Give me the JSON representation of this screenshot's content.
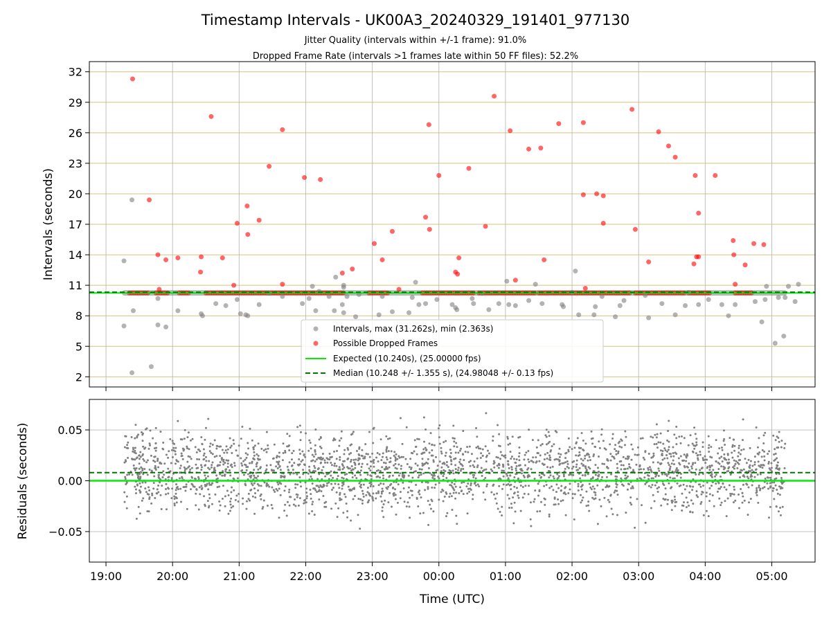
{
  "chart_data": [
    {
      "type": "scatter",
      "title": "Timestamp Intervals - UK00A3_20240329_191401_977130",
      "subtitle_lines": [
        "Jitter Quality (intervals within +/-1 frame): 91.0%",
        "Dropped Frame Rate (intervals >1 frames late within 50 FF files): 52.2%"
      ],
      "xlabel": "",
      "ylabel": "Intervals (seconds)",
      "x_unit": "hours since 19:00 UTC",
      "xlim": [
        -0.25,
        10.65
      ],
      "ylim": [
        1,
        33
      ],
      "yticks": [
        2,
        5,
        8,
        11,
        14,
        17,
        20,
        23,
        26,
        29,
        32
      ],
      "grid": true,
      "legend_position": "lower-center",
      "legend": [
        "Intervals, max (31.262s), min (2.363s)",
        "Possible Dropped Frames",
        "Expected (10.240s), (25.00000 fps)",
        "Median (10.248 +/- 1.355 s), (24.98048 +/- 0.13 fps)"
      ],
      "expected_interval": 10.24,
      "median_interval": 10.248,
      "band_range": [
        0.27,
        10.2
      ],
      "series": [
        {
          "kind": "intervals",
          "color": "#808080",
          "points": [
            [
              0.27,
              13.4
            ],
            [
              0.27,
              7.0
            ],
            [
              0.39,
              19.4
            ],
            [
              0.39,
              2.4
            ],
            [
              0.41,
              8.5
            ],
            [
              0.68,
              3.0
            ],
            [
              0.78,
              7.1
            ],
            [
              0.78,
              9.7
            ],
            [
              0.9,
              6.9
            ],
            [
              1.08,
              8.5
            ],
            [
              1.43,
              8.2
            ],
            [
              1.45,
              8.0
            ],
            [
              1.65,
              9.2
            ],
            [
              1.8,
              9.0
            ],
            [
              1.97,
              9.6
            ],
            [
              2.02,
              8.2
            ],
            [
              2.1,
              8.1
            ],
            [
              2.13,
              8.0
            ],
            [
              2.3,
              9.1
            ],
            [
              2.45,
              10.2
            ],
            [
              2.65,
              9.9
            ],
            [
              2.95,
              9.2
            ],
            [
              3.05,
              9.7
            ],
            [
              3.1,
              10.9
            ],
            [
              3.15,
              8.5
            ],
            [
              3.2,
              10.4
            ],
            [
              3.35,
              9.9
            ],
            [
              3.43,
              8.5
            ],
            [
              3.45,
              11.8
            ],
            [
              3.55,
              9.1
            ],
            [
              3.57,
              11.0
            ],
            [
              3.57,
              10.8
            ],
            [
              3.57,
              8.3
            ],
            [
              3.62,
              9.9
            ],
            [
              3.75,
              7.9
            ],
            [
              3.8,
              10.1
            ],
            [
              4.1,
              8.1
            ],
            [
              4.15,
              9.9
            ],
            [
              4.3,
              8.4
            ],
            [
              4.55,
              8.3
            ],
            [
              4.6,
              9.8
            ],
            [
              4.65,
              11.3
            ],
            [
              4.7,
              9.1
            ],
            [
              4.8,
              9.2
            ],
            [
              4.97,
              9.6
            ],
            [
              5.2,
              9.1
            ],
            [
              5.25,
              8.8
            ],
            [
              5.27,
              8.6
            ],
            [
              5.5,
              9.7
            ],
            [
              5.52,
              9.2
            ],
            [
              5.65,
              10.2
            ],
            [
              5.75,
              8.6
            ],
            [
              5.9,
              9.2
            ],
            [
              6.02,
              11.4
            ],
            [
              6.05,
              9.1
            ],
            [
              6.15,
              9.0
            ],
            [
              6.35,
              9.5
            ],
            [
              6.45,
              11.1
            ],
            [
              6.55,
              9.2
            ],
            [
              6.85,
              9.1
            ],
            [
              6.87,
              8.9
            ],
            [
              7.0,
              10.3
            ],
            [
              7.05,
              12.4
            ],
            [
              7.1,
              8.1
            ],
            [
              7.33,
              8.1
            ],
            [
              7.35,
              8.9
            ],
            [
              7.45,
              9.9
            ],
            [
              7.65,
              7.9
            ],
            [
              7.72,
              9.0
            ],
            [
              7.78,
              9.5
            ],
            [
              8.1,
              10.0
            ],
            [
              8.15,
              7.8
            ],
            [
              8.35,
              9.2
            ],
            [
              8.55,
              8.1
            ],
            [
              8.7,
              9.0
            ],
            [
              8.75,
              10.3
            ],
            [
              8.9,
              9.1
            ],
            [
              9.05,
              9.6
            ],
            [
              9.25,
              9.1
            ],
            [
              9.35,
              8.0
            ],
            [
              9.45,
              9.1
            ],
            [
              9.75,
              9.4
            ],
            [
              9.85,
              7.4
            ],
            [
              9.9,
              9.6
            ],
            [
              9.92,
              10.9
            ],
            [
              10.05,
              5.3
            ],
            [
              10.1,
              9.8
            ],
            [
              10.18,
              6.0
            ],
            [
              10.2,
              9.8
            ],
            [
              10.25,
              10.9
            ],
            [
              10.35,
              9.4
            ],
            [
              10.4,
              11.1
            ]
          ]
        },
        {
          "kind": "dropped",
          "name": "Possible Dropped Frames",
          "color": "#ff0000",
          "points": [
            [
              0.4,
              31.3
            ],
            [
              0.65,
              19.4
            ],
            [
              0.78,
              14.0
            ],
            [
              0.8,
              10.6
            ],
            [
              0.9,
              13.5
            ],
            [
              1.08,
              13.7
            ],
            [
              1.43,
              13.8
            ],
            [
              1.42,
              12.3
            ],
            [
              1.58,
              27.6
            ],
            [
              1.75,
              13.7
            ],
            [
              1.92,
              11.0
            ],
            [
              1.97,
              17.1
            ],
            [
              2.12,
              18.8
            ],
            [
              2.13,
              16.0
            ],
            [
              2.3,
              17.4
            ],
            [
              2.45,
              22.7
            ],
            [
              2.65,
              26.3
            ],
            [
              2.65,
              11.1
            ],
            [
              2.98,
              21.6
            ],
            [
              3.22,
              21.4
            ],
            [
              3.55,
              12.2
            ],
            [
              3.7,
              12.6
            ],
            [
              4.03,
              15.1
            ],
            [
              4.15,
              13.5
            ],
            [
              4.3,
              16.3
            ],
            [
              4.4,
              10.6
            ],
            [
              4.8,
              17.7
            ],
            [
              4.85,
              26.8
            ],
            [
              4.86,
              16.5
            ],
            [
              5.0,
              21.8
            ],
            [
              5.25,
              12.3
            ],
            [
              5.28,
              12.1
            ],
            [
              5.3,
              13.7
            ],
            [
              5.45,
              22.5
            ],
            [
              5.7,
              16.8
            ],
            [
              5.83,
              29.6
            ],
            [
              6.07,
              26.2
            ],
            [
              6.15,
              11.5
            ],
            [
              6.35,
              24.4
            ],
            [
              6.53,
              24.5
            ],
            [
              6.58,
              13.5
            ],
            [
              6.8,
              26.9
            ],
            [
              7.17,
              27.0
            ],
            [
              7.17,
              19.9
            ],
            [
              7.2,
              10.7
            ],
            [
              7.37,
              20.0
            ],
            [
              7.47,
              19.8
            ],
            [
              7.47,
              17.1
            ],
            [
              7.9,
              28.3
            ],
            [
              7.95,
              16.5
            ],
            [
              8.15,
              13.3
            ],
            [
              8.3,
              26.1
            ],
            [
              8.45,
              24.7
            ],
            [
              8.55,
              23.6
            ],
            [
              8.85,
              21.8
            ],
            [
              8.87,
              13.8
            ],
            [
              8.9,
              13.8
            ],
            [
              8.83,
              13.1
            ],
            [
              8.9,
              18.1
            ],
            [
              9.15,
              21.8
            ],
            [
              9.42,
              15.4
            ],
            [
              9.43,
              14.0
            ],
            [
              9.45,
              11.1
            ],
            [
              9.6,
              13.0
            ],
            [
              9.73,
              15.1
            ],
            [
              9.88,
              15.0
            ]
          ]
        }
      ]
    },
    {
      "type": "scatter",
      "xlabel": "Time (UTC)",
      "ylabel": "Residuals (seconds)",
      "xlim": [
        -0.25,
        10.65
      ],
      "ylim": [
        -0.08,
        0.08
      ],
      "yticks": [
        -0.05,
        0.0,
        0.05
      ],
      "ytick_labels": [
        "−0.05",
        "0.00",
        "0.05"
      ],
      "xticks": [
        0,
        1,
        2,
        3,
        4,
        5,
        6,
        7,
        8,
        9,
        10
      ],
      "xtick_labels": [
        "19:00",
        "20:00",
        "21:00",
        "22:00",
        "23:00",
        "00:00",
        "01:00",
        "02:00",
        "03:00",
        "04:00",
        "05:00"
      ],
      "grid": true,
      "expected_residual": 0.0,
      "median_residual": 0.008,
      "residual_range": [
        -0.075,
        0.075
      ],
      "point_color": "#808080",
      "expected_color": "#00ee00",
      "median_color": "#007700"
    }
  ]
}
